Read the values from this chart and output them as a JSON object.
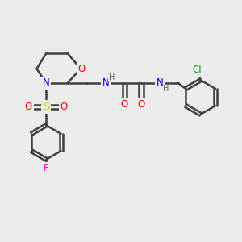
{
  "background_color": "#ececec",
  "atom_colors": {
    "C": "#404040",
    "N": "#0000ff",
    "O": "#ff0000",
    "S": "#cccc00",
    "F": "#ff00cc",
    "Cl": "#00aa00",
    "H": "#606060"
  },
  "bond_color": "#404040",
  "bond_width": 1.8,
  "font_size": 8.5
}
